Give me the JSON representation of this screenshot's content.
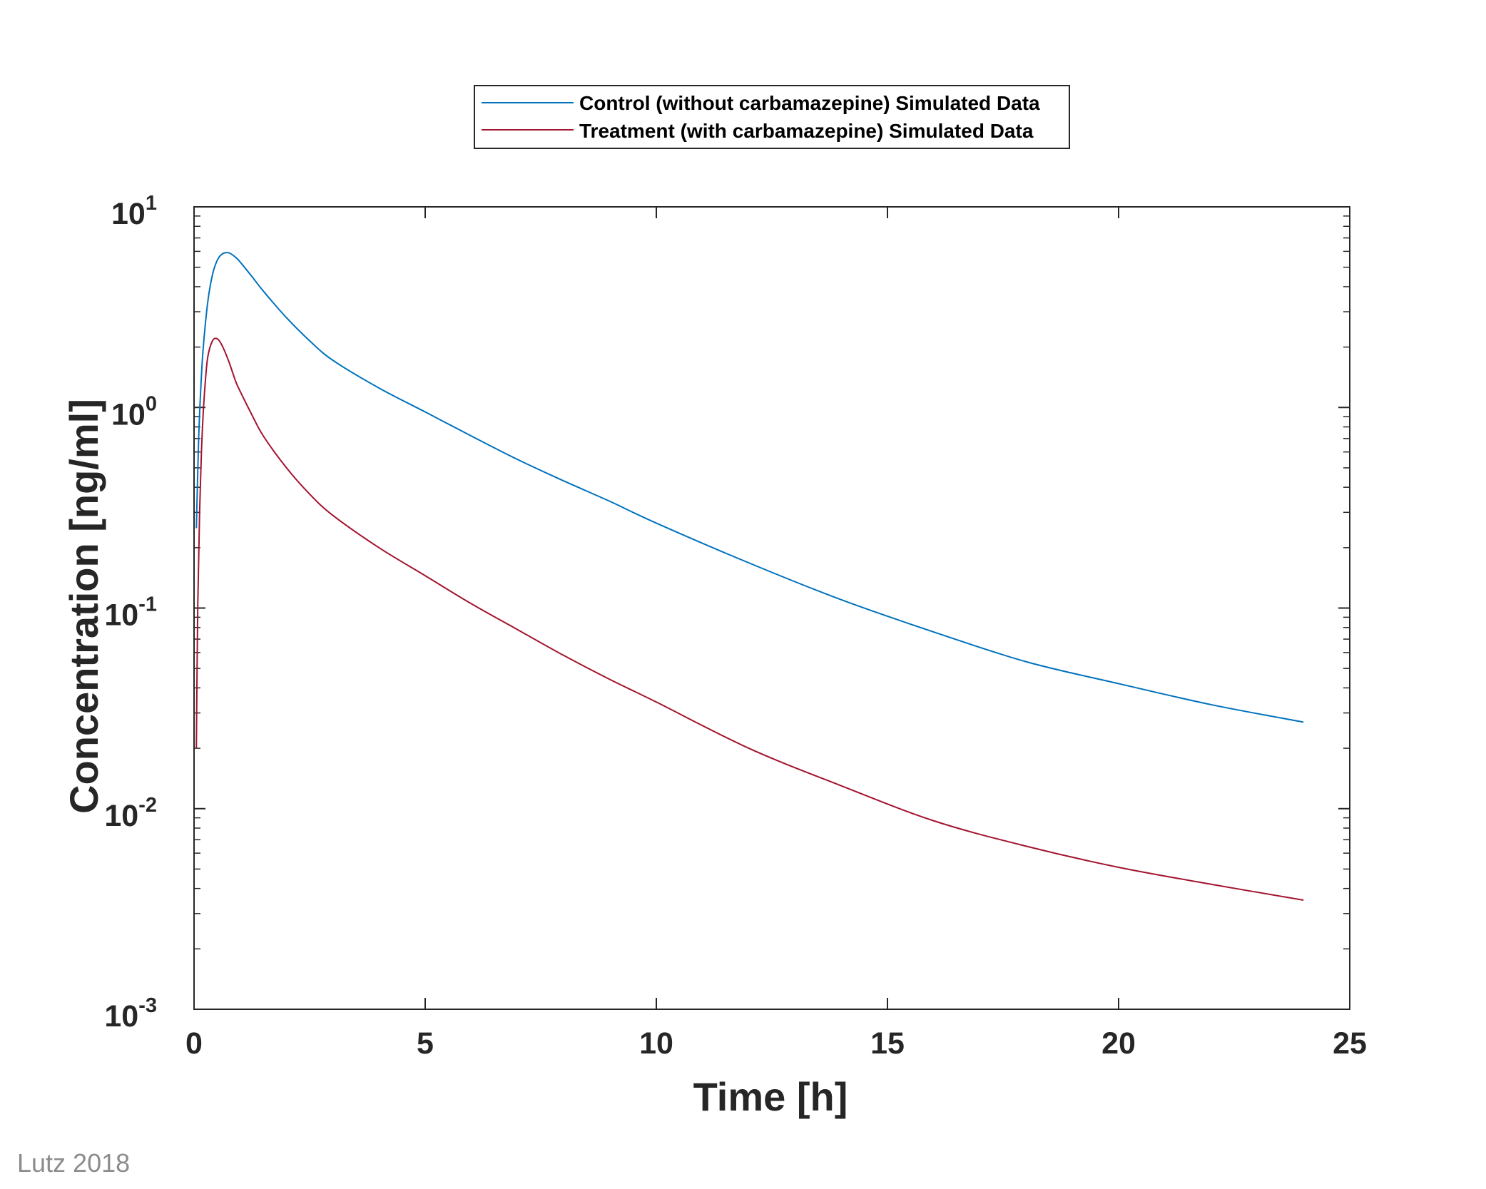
{
  "chart_data": {
    "type": "line",
    "xlabel": "Time [h]",
    "ylabel": "Concentration [ng/ml]",
    "xlim": [
      0,
      25
    ],
    "ylim": [
      0.001,
      10
    ],
    "yscale": "log",
    "xticks": [
      0,
      5,
      10,
      15,
      20,
      25
    ],
    "xtick_labels": [
      "0",
      "5",
      "10",
      "15",
      "20",
      "25"
    ],
    "yticks": [
      0.001,
      0.01,
      0.1,
      1,
      10
    ],
    "ytick_labels": [
      {
        "base": "10",
        "exp": "-3"
      },
      {
        "base": "10",
        "exp": "-2"
      },
      {
        "base": "10",
        "exp": "-1"
      },
      {
        "base": "10",
        "exp": "0"
      },
      {
        "base": "10",
        "exp": "1"
      }
    ],
    "grid": false,
    "legend_position": "top-center",
    "series": [
      {
        "name": "Control (without carbamazepine) Simulated Data",
        "color": "#0072bd",
        "x": [
          0.05,
          0.1,
          0.15,
          0.2,
          0.3,
          0.4,
          0.5,
          0.6,
          0.75,
          0.9,
          1.0,
          1.25,
          1.5,
          2,
          2.5,
          3,
          4,
          5,
          6,
          7,
          8,
          9,
          10,
          12,
          14,
          16,
          18,
          20,
          22,
          24
        ],
        "y": [
          0.25,
          0.7,
          1.3,
          2.0,
          3.4,
          4.6,
          5.4,
          5.8,
          5.9,
          5.6,
          5.3,
          4.5,
          3.8,
          2.8,
          2.15,
          1.72,
          1.25,
          0.95,
          0.72,
          0.55,
          0.43,
          0.34,
          0.265,
          0.168,
          0.11,
          0.076,
          0.054,
          0.042,
          0.033,
          0.027
        ]
      },
      {
        "name": "Treatment (with carbamazepine) Simulated Data",
        "color": "#a2142f",
        "x": [
          0.05,
          0.08,
          0.12,
          0.16,
          0.2,
          0.25,
          0.3,
          0.4,
          0.5,
          0.6,
          0.75,
          0.9,
          1.0,
          1.25,
          1.5,
          2,
          2.5,
          3,
          4,
          5,
          6,
          7,
          8,
          9,
          10,
          12,
          14,
          16,
          18,
          20,
          22,
          24
        ],
        "y": [
          0.02,
          0.1,
          0.3,
          0.6,
          0.95,
          1.4,
          1.8,
          2.15,
          2.2,
          2.05,
          1.7,
          1.35,
          1.2,
          0.92,
          0.72,
          0.5,
          0.37,
          0.29,
          0.2,
          0.145,
          0.105,
          0.078,
          0.058,
          0.044,
          0.034,
          0.02,
          0.013,
          0.0087,
          0.0065,
          0.0051,
          0.0042,
          0.0035
        ]
      }
    ]
  },
  "credit": "Lutz 2018"
}
